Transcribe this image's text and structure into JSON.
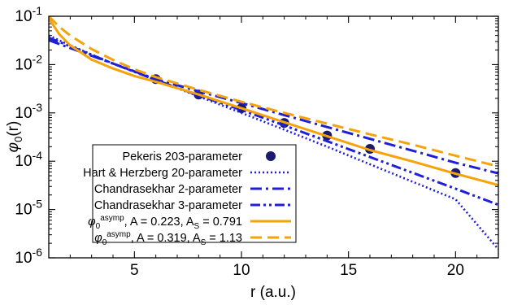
{
  "chart_data": {
    "type": "line",
    "title": "",
    "xlabel": "r (a.u.)",
    "ylabel_main": "φ",
    "ylabel_sub": "0",
    "ylabel_tail": "(r)",
    "xlim": [
      1,
      22
    ],
    "ylim": [
      1e-06,
      0.1
    ],
    "yscale": "log",
    "grid": false,
    "legend_position": "bottom-left",
    "x_ticks": [
      5,
      10,
      15,
      20
    ],
    "x_tick_labels": [
      "5",
      "10",
      "15",
      "20"
    ],
    "y_ticks": [
      0.1,
      0.01,
      0.001,
      0.0001,
      1e-05,
      1e-06
    ],
    "y_tick_labels": [
      {
        "base": "10",
        "exp": "-1"
      },
      {
        "base": "10",
        "exp": "-2"
      },
      {
        "base": "10",
        "exp": "-3"
      },
      {
        "base": "10",
        "exp": "-4"
      },
      {
        "base": "10",
        "exp": "-5"
      },
      {
        "base": "10",
        "exp": "-6"
      }
    ],
    "series": [
      {
        "name": "Pekeris 203-parameter",
        "style": "points",
        "color": "#1a1a6e",
        "x": [
          6,
          8,
          10,
          12,
          14,
          16,
          20
        ],
        "y": [
          0.005,
          0.0024,
          0.00125,
          0.00062,
          0.00034,
          0.00018,
          5.7e-05
        ]
      },
      {
        "name": "Hart & Herzberg 20-parameter",
        "style": "dotted",
        "color": "#1f1fd8",
        "x": [
          1,
          2,
          4,
          6,
          8,
          10,
          12,
          14,
          16,
          18,
          20,
          22
        ],
        "y": [
          0.04,
          0.025,
          0.0105,
          0.0048,
          0.0022,
          0.001,
          0.00045,
          0.0002,
          8.64e-05,
          3.75e-05,
          1.63e-05,
          1.5e-06
        ]
      },
      {
        "name": "Chandrasekhar 2-parameter",
        "style": "dash-dot",
        "color": "#1f1fd8",
        "x": [
          1,
          2,
          4,
          6,
          8,
          10,
          12,
          14,
          16,
          18,
          20,
          22
        ],
        "y": [
          0.032,
          0.022,
          0.0105,
          0.005,
          0.0028,
          0.0016,
          0.0009,
          0.00051,
          0.00029,
          0.000165,
          9.3e-05,
          5.6e-05
        ]
      },
      {
        "name": "Chandrasekhar 3-parameter",
        "style": "dash-dot-dot",
        "color": "#1f1fd8",
        "x": [
          1,
          2,
          4,
          6,
          8,
          10,
          12,
          14,
          16,
          18,
          20,
          22
        ],
        "y": [
          0.036,
          0.024,
          0.0105,
          0.0048,
          0.0023,
          0.00115,
          0.00055,
          0.00026,
          0.000122,
          5.75e-05,
          2.7e-05,
          1.25e-05
        ]
      },
      {
        "name_main": "φ",
        "name_sub": "0",
        "name_sup": "asymp",
        "name_rest": ", A = 0.223, A",
        "name_sub2": "S",
        "name_tail": " = 0.791",
        "style": "solid",
        "color": "#f5a30a",
        "x": [
          1,
          1.5,
          2,
          3,
          4,
          5,
          6,
          8,
          10,
          12,
          14,
          16,
          18,
          20,
          22
        ],
        "y": [
          0.09,
          0.042,
          0.025,
          0.0127,
          0.0083,
          0.0058,
          0.0044,
          0.0024,
          0.00125,
          0.00064,
          0.00033,
          0.00017,
          9.85e-05,
          5.5e-05,
          3.2e-05
        ]
      },
      {
        "name_main": "φ",
        "name_sub": "0",
        "name_sup": "asymp",
        "name_rest": ", A = 0.319, A",
        "name_sub2": "S",
        "name_tail": " = 1.13",
        "style": "dashed",
        "color": "#f5a30a",
        "x": [
          1,
          1.5,
          2,
          3,
          4,
          5,
          6,
          8,
          10,
          12,
          14,
          16,
          18,
          20,
          22
        ],
        "y": [
          0.1,
          0.06,
          0.04,
          0.021,
          0.0125,
          0.008,
          0.0055,
          0.003,
          0.0017,
          0.001,
          0.0006,
          0.00036,
          0.00022,
          0.00013,
          7.8e-05
        ]
      }
    ]
  }
}
